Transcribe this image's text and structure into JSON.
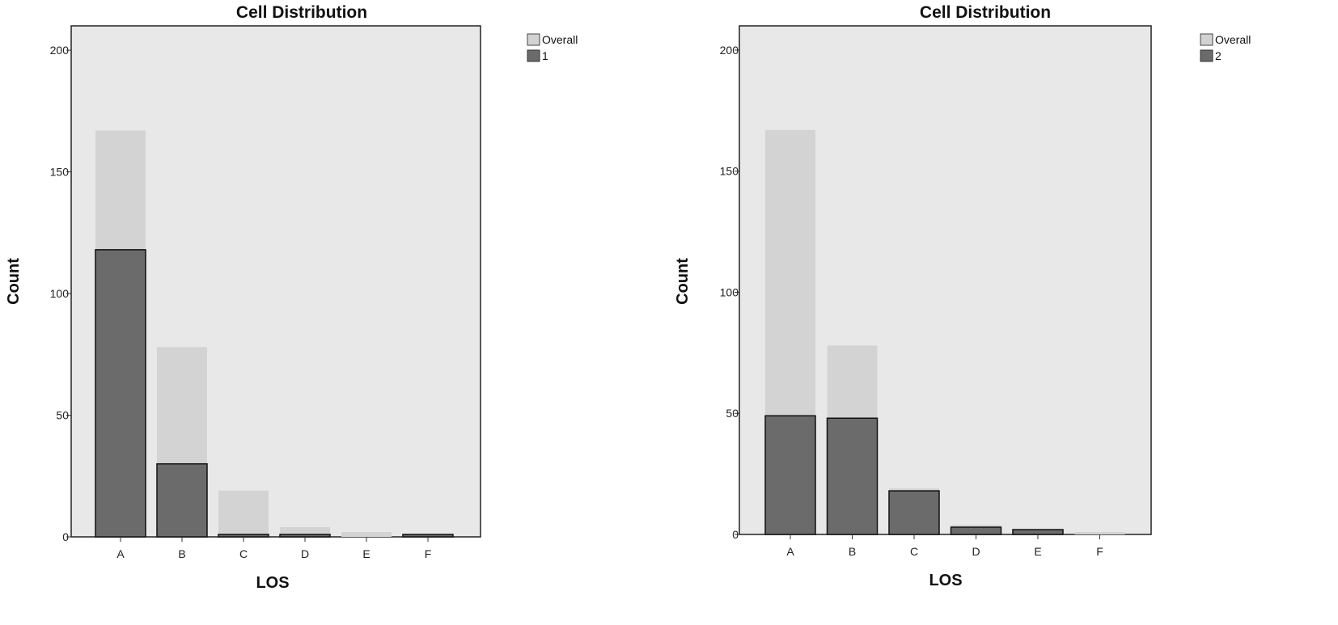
{
  "charts": [
    {
      "title": "Cell Distribution",
      "xlabel": "LOS",
      "ylabel": "Count",
      "legend": [
        "Overall",
        "1"
      ]
    },
    {
      "title": "Cell Distribution",
      "xlabel": "LOS",
      "ylabel": "Count",
      "legend": [
        "Overall",
        "2"
      ]
    }
  ],
  "chart_data": [
    {
      "type": "bar",
      "title": "Cell Distribution",
      "xlabel": "LOS",
      "ylabel": "Count",
      "categories": [
        "A",
        "B",
        "C",
        "D",
        "E",
        "F"
      ],
      "series": [
        {
          "name": "Overall",
          "values": [
            167,
            78,
            19,
            4,
            2,
            1
          ]
        },
        {
          "name": "1",
          "values": [
            118,
            30,
            1,
            1,
            0,
            1
          ]
        }
      ],
      "ylim": [
        0,
        210
      ],
      "yticks": [
        0,
        50,
        100,
        150,
        200
      ],
      "grid": false,
      "legend_position": "top-right",
      "colors": {
        "background": "#e8e8e8",
        "overall": "#d3d3d3",
        "group": "#6b6b6b"
      }
    },
    {
      "type": "bar",
      "title": "Cell Distribution",
      "xlabel": "LOS",
      "ylabel": "Count",
      "categories": [
        "A",
        "B",
        "C",
        "D",
        "E",
        "F"
      ],
      "series": [
        {
          "name": "Overall",
          "values": [
            167,
            78,
            19,
            4,
            2,
            1
          ]
        },
        {
          "name": "2",
          "values": [
            49,
            48,
            18,
            3,
            2,
            0
          ]
        }
      ],
      "ylim": [
        0,
        210
      ],
      "yticks": [
        0,
        50,
        100,
        150,
        200
      ],
      "grid": false,
      "legend_position": "top-right",
      "colors": {
        "background": "#e8e8e8",
        "overall": "#d3d3d3",
        "group": "#6b6b6b"
      }
    }
  ]
}
